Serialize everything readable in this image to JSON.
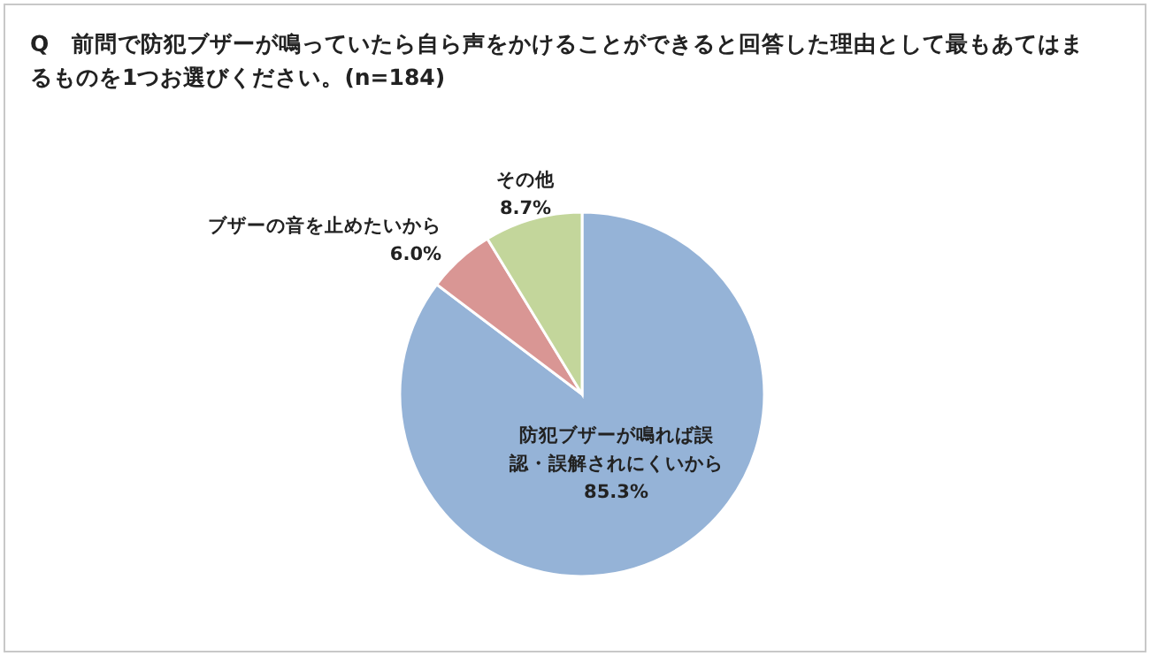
{
  "chart_data": {
    "type": "pie",
    "title": "Q　前問で防犯ブザーが鳴っていたら自ら声をかけることができると回答した理由として最もあてはまるものを1つお選びください。(n=184)",
    "categories": [
      "防犯ブザーが鳴れば誤認・誤解されにくいから",
      "ブザーの音を止めたいから",
      "その他"
    ],
    "values": [
      85.3,
      6.0,
      8.7
    ],
    "colors": [
      "#95b3d7",
      "#d99694",
      "#c3d69b"
    ],
    "value_labels": [
      "85.3%",
      "6.0%",
      "8.7%"
    ]
  }
}
